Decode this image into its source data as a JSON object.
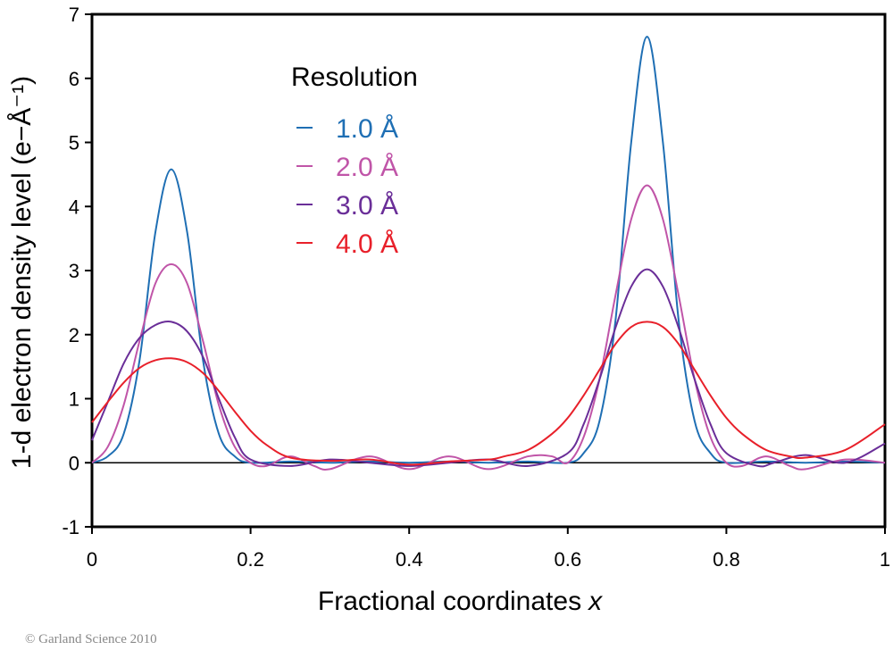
{
  "chart_data": {
    "type": "line",
    "xlabel": "Fractional coordinates",
    "xlabel_var": "x",
    "ylabel": "1-d electron density level (e−Å⁻¹)",
    "xlim": [
      0,
      1
    ],
    "ylim": [
      -1,
      7
    ],
    "x_ticks": [
      "0",
      "0.2",
      "0.4",
      "0.6",
      "0.8",
      "1"
    ],
    "y_ticks": [
      "-1",
      "0",
      "1",
      "2",
      "3",
      "4",
      "5",
      "6",
      "7"
    ],
    "grid": false,
    "legend_title": "Resolution",
    "legend_position": "top-left",
    "series": [
      {
        "name": "1.0 Å",
        "color": "#1f6fb4",
        "x": [
          0,
          0.02,
          0.04,
          0.06,
          0.08,
          0.1,
          0.12,
          0.14,
          0.16,
          0.18,
          0.2,
          0.25,
          0.3,
          0.35,
          0.4,
          0.45,
          0.5,
          0.55,
          0.6,
          0.62,
          0.64,
          0.66,
          0.68,
          0.7,
          0.72,
          0.74,
          0.76,
          0.78,
          0.8,
          0.85,
          0.9,
          0.95,
          1.0
        ],
        "y": [
          0.0,
          0.1,
          0.45,
          1.6,
          3.6,
          4.58,
          3.6,
          1.6,
          0.45,
          0.1,
          0.0,
          0.02,
          0.0,
          0.02,
          0.0,
          0.02,
          0.0,
          0.02,
          0.0,
          0.15,
          0.65,
          2.2,
          5.0,
          6.65,
          5.0,
          2.2,
          0.65,
          0.15,
          0.0,
          0.02,
          0.0,
          0.02,
          0.0
        ]
      },
      {
        "name": "2.0 Å",
        "color": "#c055a8",
        "x": [
          0,
          0.02,
          0.04,
          0.06,
          0.08,
          0.1,
          0.12,
          0.14,
          0.16,
          0.18,
          0.2,
          0.22,
          0.25,
          0.28,
          0.3,
          0.35,
          0.4,
          0.45,
          0.5,
          0.55,
          0.58,
          0.6,
          0.62,
          0.64,
          0.66,
          0.68,
          0.7,
          0.72,
          0.74,
          0.76,
          0.78,
          0.8,
          0.82,
          0.85,
          0.88,
          0.9,
          0.95,
          1.0
        ],
        "y": [
          0.0,
          0.25,
          0.9,
          1.9,
          2.8,
          3.1,
          2.8,
          1.9,
          0.9,
          0.25,
          0.0,
          -0.05,
          0.1,
          -0.05,
          -0.1,
          0.1,
          -0.1,
          0.1,
          -0.1,
          0.1,
          0.1,
          0.0,
          0.4,
          1.3,
          2.6,
          3.8,
          4.33,
          3.8,
          2.6,
          1.3,
          0.4,
          0.0,
          -0.05,
          0.1,
          -0.05,
          -0.1,
          0.05,
          0.0
        ]
      },
      {
        "name": "3.0 Å",
        "color": "#6a2e98",
        "x": [
          0,
          0.02,
          0.04,
          0.06,
          0.08,
          0.1,
          0.12,
          0.14,
          0.16,
          0.18,
          0.2,
          0.25,
          0.3,
          0.35,
          0.4,
          0.45,
          0.5,
          0.55,
          0.6,
          0.62,
          0.64,
          0.66,
          0.68,
          0.7,
          0.72,
          0.74,
          0.76,
          0.78,
          0.8,
          0.84,
          0.86,
          0.9,
          0.95,
          1.0
        ],
        "y": [
          0.35,
          0.95,
          1.55,
          1.95,
          2.15,
          2.2,
          2.05,
          1.65,
          1.0,
          0.4,
          0.05,
          -0.05,
          0.05,
          0.0,
          -0.05,
          0.0,
          0.05,
          -0.05,
          0.15,
          0.6,
          1.3,
          2.1,
          2.75,
          3.02,
          2.75,
          2.1,
          1.3,
          0.6,
          0.15,
          -0.05,
          0.0,
          0.12,
          0.0,
          0.3
        ]
      },
      {
        "name": "4.0 Å",
        "color": "#e8202a",
        "x": [
          0,
          0.02,
          0.04,
          0.06,
          0.08,
          0.1,
          0.12,
          0.14,
          0.16,
          0.18,
          0.2,
          0.22,
          0.25,
          0.3,
          0.35,
          0.4,
          0.45,
          0.5,
          0.52,
          0.55,
          0.58,
          0.6,
          0.62,
          0.64,
          0.66,
          0.68,
          0.7,
          0.72,
          0.74,
          0.76,
          0.78,
          0.8,
          0.82,
          0.85,
          0.88,
          0.9,
          0.95,
          1.0
        ],
        "y": [
          0.63,
          0.95,
          1.25,
          1.48,
          1.6,
          1.63,
          1.57,
          1.4,
          1.12,
          0.8,
          0.5,
          0.28,
          0.08,
          0.03,
          0.05,
          -0.03,
          0.02,
          0.05,
          0.1,
          0.2,
          0.45,
          0.7,
          1.05,
          1.45,
          1.85,
          2.12,
          2.2,
          2.12,
          1.85,
          1.45,
          1.05,
          0.7,
          0.45,
          0.2,
          0.1,
          0.08,
          0.2,
          0.6
        ]
      }
    ]
  },
  "footer": {
    "copyright": "© Garland Science 2010"
  }
}
